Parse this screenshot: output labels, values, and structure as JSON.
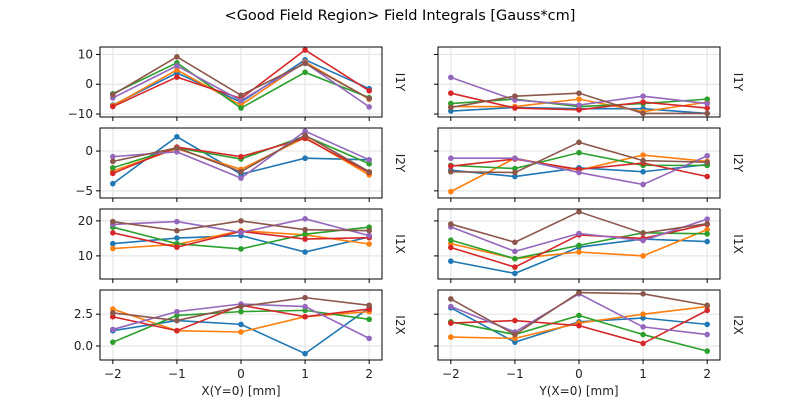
{
  "chart_data": {
    "type": "line",
    "title": "<Good Field Region> Field Integrals [Gauss*cm]",
    "series_colors": [
      "#1f77b4",
      "#ff7f0e",
      "#2ca02c",
      "#d62728",
      "#9467bd",
      "#8c564b"
    ],
    "grid": true,
    "columns": [
      {
        "xlabel": "X(Y=0) [mm]",
        "x": [
          -2,
          -1,
          0,
          1,
          2
        ],
        "xticks": [
          "−2",
          "−1",
          "0",
          "1",
          "2"
        ]
      },
      {
        "xlabel": "Y(X=0) [mm]",
        "x": [
          -2,
          -1,
          0,
          1,
          2
        ],
        "xticks": [
          "−2",
          "−1",
          "0",
          "1",
          "2"
        ]
      }
    ],
    "rows": [
      {
        "ylabel": "I1Y",
        "ylim": [
          -11,
          12.5
        ],
        "yticks": [
          {
            "v": 10,
            "label": "10"
          },
          {
            "v": 0,
            "label": "0"
          },
          {
            "v": -10,
            "label": "−10"
          }
        ],
        "panels": [
          [
            [
              -7.0,
              3.8,
              -6.0,
              8.2,
              -1.5
            ],
            [
              -7.2,
              4.8,
              -7.0,
              7.5,
              -5.0
            ],
            [
              -3.2,
              7.2,
              -8.0,
              4.0,
              -4.5
            ],
            [
              -7.5,
              2.4,
              -4.8,
              11.5,
              -2.2
            ],
            [
              -4.6,
              6.2,
              -5.5,
              7.2,
              -7.6
            ],
            [
              -3.5,
              9.2,
              -3.7,
              7.0,
              -4.8
            ]
          ],
          [
            [
              -9.0,
              -7.8,
              -8.2,
              -8.2,
              -9.8
            ],
            [
              -7.5,
              -7.5,
              -5.0,
              -9.2,
              -6.0
            ],
            [
              -6.5,
              -5.0,
              -7.5,
              -6.5,
              -5.0
            ],
            [
              -3.0,
              -8.0,
              -8.6,
              -6.0,
              -8.0
            ],
            [
              2.3,
              -5.3,
              -7.0,
              -4.0,
              -6.5
            ],
            [
              -7.8,
              -4.0,
              -3.0,
              -9.8,
              -9.8
            ]
          ]
        ]
      },
      {
        "ylabel": "I2Y",
        "ylim": [
          -5.9,
          2.9
        ],
        "yticks": [
          {
            "v": 0,
            "label": "0"
          },
          {
            "v": -5,
            "label": "−5"
          }
        ],
        "panels": [
          [
            [
              -4.1,
              1.8,
              -2.9,
              -0.9,
              -1.1
            ],
            [
              -2.5,
              0.3,
              -2.3,
              1.7,
              -3.0
            ],
            [
              -2.1,
              0.4,
              -1.0,
              1.9,
              -1.6
            ],
            [
              -2.8,
              0.5,
              -0.7,
              1.6,
              -2.7
            ],
            [
              -0.7,
              -0.1,
              -3.4,
              2.5,
              -1.1
            ],
            [
              -1.3,
              0.4,
              -2.6,
              2.0,
              -2.6
            ]
          ],
          [
            [
              -2.4,
              -3.2,
              -2.1,
              -2.6,
              -1.7
            ],
            [
              -5.1,
              -0.9,
              -2.4,
              -0.5,
              -1.3
            ],
            [
              -1.8,
              -2.2,
              -0.2,
              -1.8,
              -1.8
            ],
            [
              -1.9,
              -1.0,
              -2.3,
              -1.5,
              -3.2
            ],
            [
              -0.9,
              -0.9,
              -2.7,
              -4.2,
              -0.6
            ],
            [
              -2.6,
              -2.7,
              1.1,
              -1.2,
              -1.4
            ]
          ]
        ]
      },
      {
        "ylabel": "I1X",
        "ylim": [
          3.4,
          23.4
        ],
        "yticks": [
          {
            "v": 20,
            "label": "20"
          },
          {
            "v": 10,
            "label": "10"
          }
        ],
        "panels": [
          [
            [
              13.5,
              15.1,
              15.8,
              11.1,
              15.4
            ],
            [
              12.1,
              13.3,
              17.2,
              16.0,
              13.4
            ],
            [
              18.2,
              13.5,
              12.0,
              16.2,
              18.2
            ],
            [
              16.6,
              12.5,
              17.0,
              14.8,
              15.2
            ],
            [
              19.0,
              19.8,
              16.7,
              20.6,
              15.8
            ],
            [
              19.8,
              17.2,
              20.0,
              17.5,
              17.2
            ]
          ],
          [
            [
              8.5,
              5.0,
              12.5,
              14.8,
              14.1
            ],
            [
              13.5,
              9.2,
              11.1,
              10.0,
              17.5
            ],
            [
              14.5,
              9.2,
              13.0,
              16.6,
              16.3
            ],
            [
              12.4,
              6.8,
              16.0,
              15.0,
              19.0
            ],
            [
              18.3,
              11.3,
              16.4,
              14.4,
              20.5
            ],
            [
              19.1,
              13.9,
              22.6,
              16.5,
              19.2
            ]
          ]
        ]
      },
      {
        "ylabel": "I2X",
        "ylim": [
          -1.1,
          4.4
        ],
        "yticks": [
          {
            "v": 2.5,
            "label": "2.5"
          },
          {
            "v": 0.0,
            "label": "0.0"
          }
        ],
        "panels": [
          [
            [
              1.2,
              2.0,
              1.7,
              -0.6,
              3.0
            ],
            [
              2.9,
              1.2,
              1.1,
              2.3,
              2.7
            ],
            [
              0.3,
              2.4,
              2.7,
              2.8,
              2.1
            ],
            [
              2.3,
              1.2,
              3.2,
              2.3,
              2.9
            ],
            [
              1.3,
              2.7,
              3.3,
              3.1,
              0.6
            ],
            [
              2.6,
              2.0,
              3.1,
              3.8,
              3.2
            ]
          ],
          [
            [
              3.0,
              0.3,
              1.9,
              2.2,
              1.7
            ],
            [
              0.7,
              0.6,
              1.8,
              2.5,
              3.1
            ],
            [
              1.9,
              0.9,
              2.4,
              0.9,
              -0.4
            ],
            [
              1.8,
              2.0,
              1.6,
              0.2,
              2.8
            ],
            [
              3.1,
              1.1,
              4.1,
              1.5,
              0.9
            ],
            [
              3.7,
              0.9,
              4.2,
              4.1,
              3.2
            ]
          ]
        ]
      }
    ]
  }
}
